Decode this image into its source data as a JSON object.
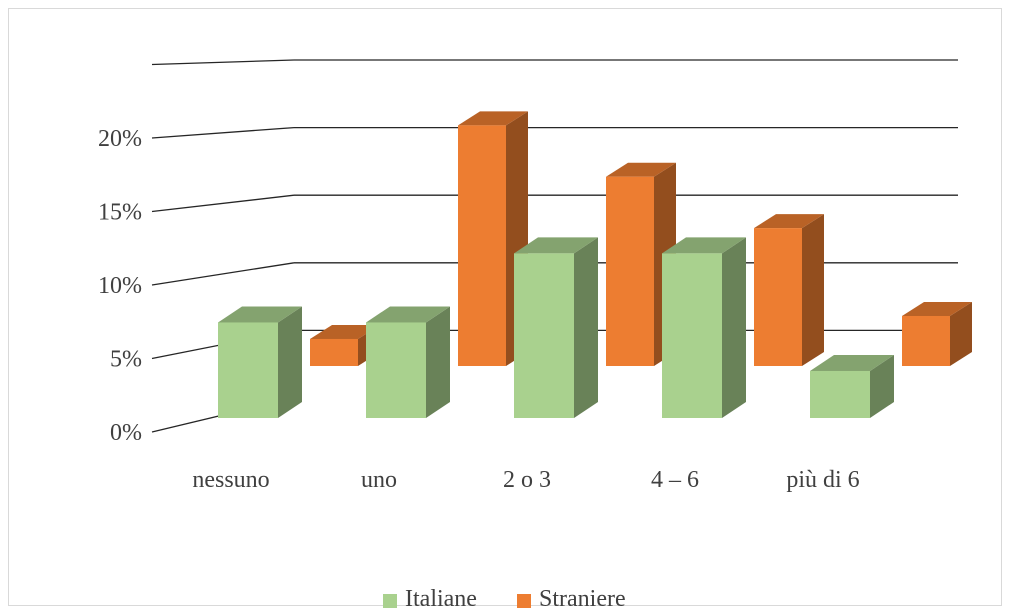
{
  "chart_data": {
    "type": "bar",
    "subtype": "3d-clustered",
    "categories": [
      "nessuno",
      "uno",
      "2 o 3",
      "4 – 6",
      "più di 6"
    ],
    "series": [
      {
        "name": "Italiane",
        "color": "#a9d18e",
        "values": [
          6.5,
          6.5,
          11.2,
          11.2,
          3.2
        ]
      },
      {
        "name": "Straniere",
        "color": "#ed7d31",
        "values": [
          2.0,
          17.8,
          14.0,
          10.2,
          3.7
        ]
      }
    ],
    "y_ticks": [
      "0%",
      "5%",
      "10%",
      "15%",
      "20%"
    ],
    "ylim": [
      0,
      25
    ],
    "grid": true,
    "legend_position": "bottom"
  }
}
